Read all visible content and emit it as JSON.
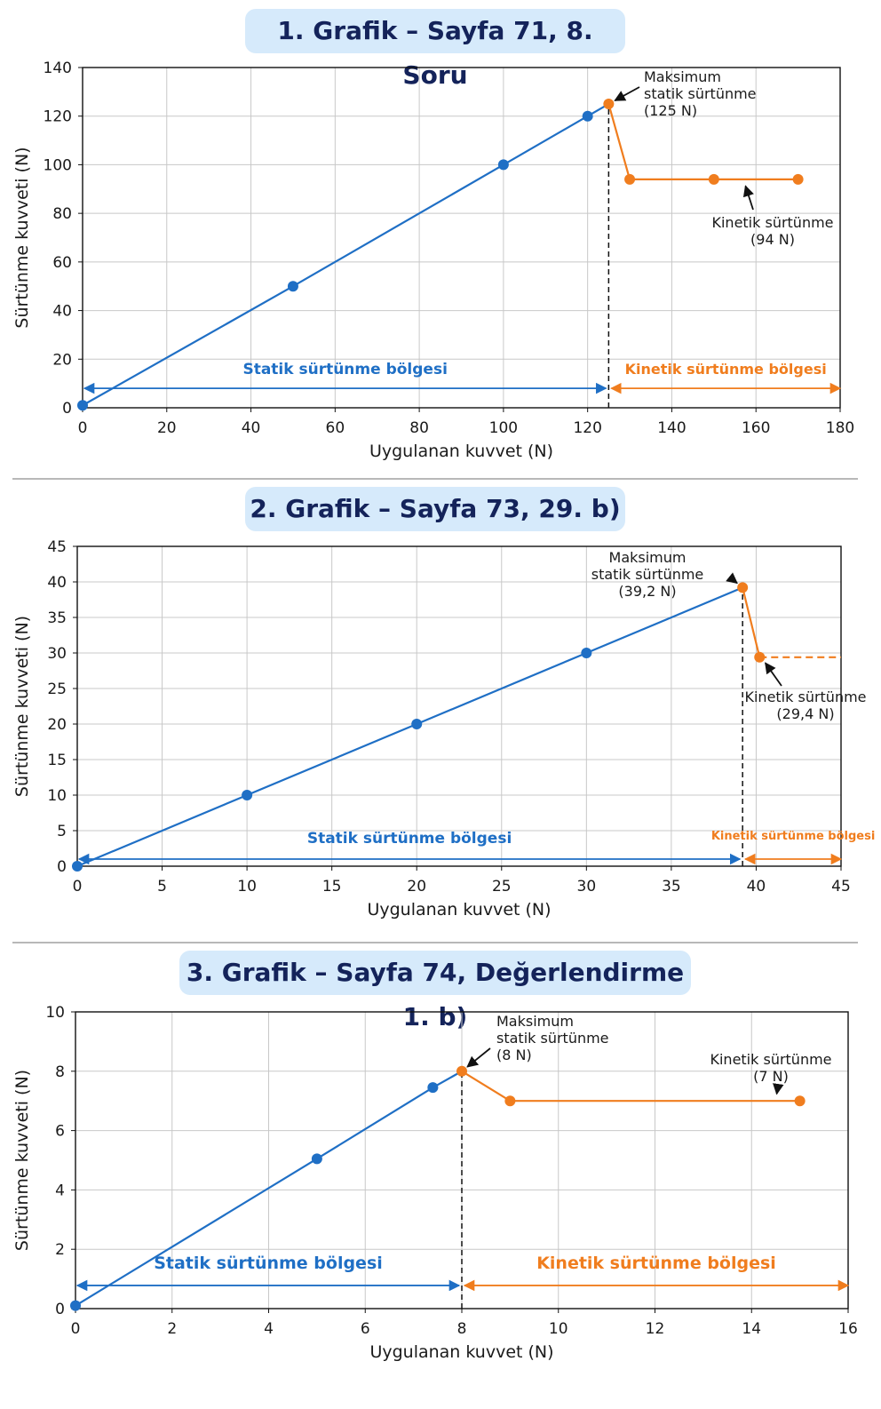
{
  "chart_data": [
    {
      "type": "line",
      "title": "1. Grafik – Sayfa 71, 8. Soru",
      "xlabel": "Uygulanan kuvvet (N)",
      "ylabel": "Sürtünme kuvveti (N)",
      "xlim": [
        0,
        180
      ],
      "ylim": [
        0,
        140
      ],
      "xticks": [
        0,
        20,
        40,
        60,
        80,
        100,
        120,
        140,
        160,
        180
      ],
      "yticks": [
        0,
        20,
        40,
        60,
        80,
        100,
        120,
        140
      ],
      "grid": true,
      "max_static_x": 125,
      "series": [
        {
          "color": "#1f6fc5",
          "points": [
            [
              0,
              1
            ],
            [
              50,
              50
            ],
            [
              100,
              100
            ],
            [
              120,
              120
            ],
            [
              125,
              125
            ]
          ],
          "marked": [
            0,
            1,
            2,
            3
          ]
        },
        {
          "color": "#f07d1e",
          "points": [
            [
              125,
              125
            ],
            [
              130,
              94
            ],
            [
              150,
              94
            ],
            [
              170,
              94
            ]
          ],
          "marked": [
            0,
            1,
            2,
            3
          ]
        }
      ],
      "regions": [
        {
          "label": "Statik sürtünme bölgesi",
          "from": 0,
          "to": 125,
          "y": 8,
          "color": "#1f6fc5"
        },
        {
          "label": "Kinetik sürtünme bölgesi",
          "from": 125,
          "to": 180,
          "y": 8,
          "color": "#f07d1e"
        }
      ],
      "annotations": [
        {
          "lines": [
            "Maksimum",
            "statik sürtünme",
            "(125 N)"
          ],
          "point": [
            125,
            125
          ]
        },
        {
          "lines": [
            "Kinetik sürtünme",
            "(94 N)"
          ],
          "point": [
            157,
            94
          ]
        }
      ]
    },
    {
      "type": "line",
      "title": "2. Grafik – Sayfa 73, 29. b)",
      "xlabel": "Uygulanan kuvvet (N)",
      "ylabel": "Sürtünme kuvveti (N)",
      "xlim": [
        0,
        45
      ],
      "ylim": [
        0,
        45
      ],
      "xticks": [
        0,
        5,
        10,
        15,
        20,
        25,
        30,
        35,
        40,
        45
      ],
      "yticks": [
        0,
        5,
        10,
        15,
        20,
        25,
        30,
        35,
        40,
        45
      ],
      "grid": true,
      "max_static_x": 39.2,
      "series": [
        {
          "color": "#1f6fc5",
          "points": [
            [
              0,
              0
            ],
            [
              10,
              10
            ],
            [
              20,
              20
            ],
            [
              30,
              30
            ],
            [
              39.2,
              39.2
            ]
          ],
          "marked": [
            0,
            1,
            2,
            3
          ]
        },
        {
          "color": "#f07d1e",
          "points": [
            [
              39.2,
              39.2
            ],
            [
              40.2,
              29.4
            ]
          ],
          "marked": [
            0,
            1
          ]
        },
        {
          "color": "#f07d1e",
          "dashed": true,
          "points": [
            [
              40.2,
              29.4
            ],
            [
              45,
              29.4
            ]
          ],
          "marked": []
        }
      ],
      "regions": [
        {
          "label": "Statik sürtünme bölgesi",
          "from": 0,
          "to": 39.2,
          "y": 1,
          "color": "#1f6fc5"
        },
        {
          "label": "Kinetik sürtünme bölgesi",
          "from": 39.2,
          "to": 45,
          "y": 1,
          "color": "#f07d1e"
        }
      ],
      "annotations": [
        {
          "lines": [
            "Maksimum",
            "statik sürtünme",
            "(39,2 N)"
          ],
          "point": [
            39.2,
            39.2
          ]
        },
        {
          "lines": [
            "Kinetik sürtünme",
            "(29,4 N)"
          ],
          "point": [
            40.3,
            29.4
          ]
        }
      ]
    },
    {
      "type": "line",
      "title": "3. Grafik – Sayfa 74, Değerlendirme 1. b)",
      "xlabel": "Uygulanan kuvvet (N)",
      "ylabel": "Sürtünme kuvveti (N)",
      "xlim": [
        0,
        16
      ],
      "ylim": [
        0,
        10
      ],
      "xticks": [
        0,
        2,
        4,
        6,
        8,
        10,
        12,
        14,
        16
      ],
      "yticks": [
        0,
        2,
        4,
        6,
        8,
        10
      ],
      "grid": true,
      "max_static_x": 8,
      "series": [
        {
          "color": "#1f6fc5",
          "points": [
            [
              0,
              0.1
            ],
            [
              5,
              5.05
            ],
            [
              7.4,
              7.45
            ],
            [
              8,
              8
            ]
          ],
          "marked": [
            0,
            1,
            2
          ]
        },
        {
          "color": "#f07d1e",
          "points": [
            [
              8,
              8
            ],
            [
              9,
              7
            ],
            [
              15,
              7
            ]
          ],
          "marked": [
            0,
            1,
            2
          ]
        }
      ],
      "regions": [
        {
          "label": "Statik sürtünme bölgesi",
          "from": 0,
          "to": 8,
          "y": 0.78,
          "color": "#1f6fc5"
        },
        {
          "label": "Kinetik sürtünme bölgesi",
          "from": 8,
          "to": 16,
          "y": 0.78,
          "color": "#f07d1e"
        }
      ],
      "annotations": [
        {
          "lines": [
            "Maksimum",
            "statik sürtünme",
            "(8 N)"
          ],
          "point": [
            8,
            8
          ]
        },
        {
          "lines": [
            "Kinetik sürtünme",
            "(7 N)"
          ],
          "point": [
            14.5,
            7
          ]
        }
      ]
    }
  ]
}
